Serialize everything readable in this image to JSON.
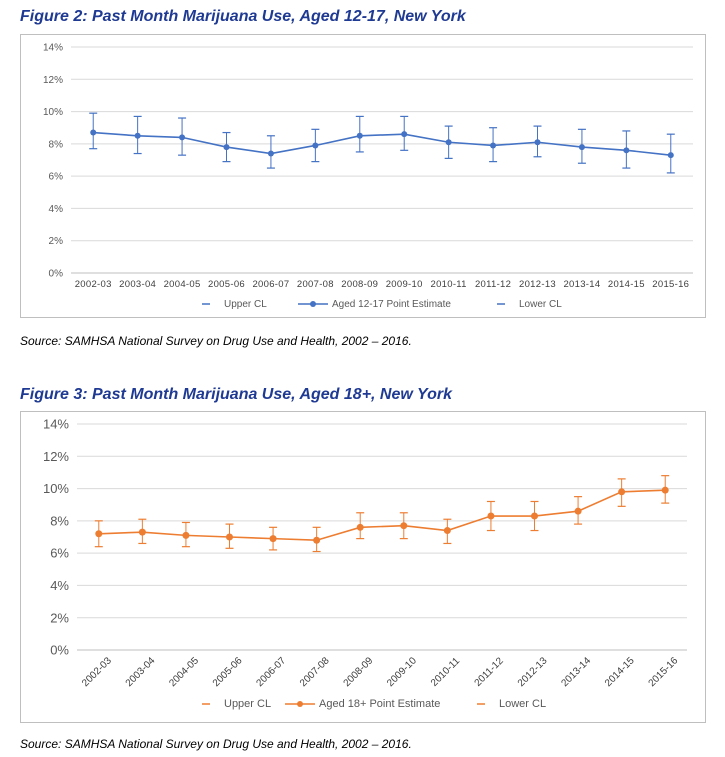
{
  "figures": [
    {
      "title": "Figure 2: Past Month Marijuana Use, Aged 12-17, New York",
      "source": "Source: SAMHSA National Survey on Drug Use and Health, 2002 – 2016."
    },
    {
      "title": "Figure 3: Past Month Marijuana Use, Aged 18+, New York",
      "source": "Source: SAMHSA National Survey on Drug Use and Health, 2002 – 2016."
    }
  ],
  "chart_data": [
    {
      "type": "line",
      "title": "",
      "color": "#4472c4",
      "categories": [
        "2002-03",
        "2003-04",
        "2004-05",
        "2005-06",
        "2006-07",
        "2007-08",
        "2008-09",
        "2009-10",
        "2010-11",
        "2011-12",
        "2012-13",
        "2013-14",
        "2014-15",
        "2015-16"
      ],
      "series": [
        {
          "name": "Upper CL",
          "values": [
            9.9,
            9.7,
            9.6,
            8.7,
            8.5,
            8.9,
            9.7,
            9.7,
            9.1,
            9.0,
            9.1,
            8.9,
            8.8,
            8.6
          ]
        },
        {
          "name": "Aged 12-17 Point Estimate",
          "values": [
            8.7,
            8.5,
            8.4,
            7.8,
            7.4,
            7.9,
            8.5,
            8.6,
            8.1,
            7.9,
            8.1,
            7.8,
            7.6,
            7.3
          ]
        },
        {
          "name": "Lower CL",
          "values": [
            7.7,
            7.4,
            7.3,
            6.9,
            6.5,
            6.9,
            7.5,
            7.6,
            7.1,
            6.9,
            7.2,
            6.8,
            6.5,
            6.2
          ]
        }
      ],
      "yticks": [
        "0%",
        "2%",
        "4%",
        "6%",
        "8%",
        "10%",
        "12%",
        "14%"
      ],
      "ylim": [
        0,
        14
      ],
      "legend_position": "bottom",
      "grid": true,
      "rotated_x_labels": false
    },
    {
      "type": "line",
      "title": "",
      "color": "#ed7d31",
      "categories": [
        "2002-03",
        "2003-04",
        "2004-05",
        "2005-06",
        "2006-07",
        "2007-08",
        "2008-09",
        "2009-10",
        "2010-11",
        "2011-12",
        "2012-13",
        "2013-14",
        "2014-15",
        "2015-16"
      ],
      "series": [
        {
          "name": "Upper CL",
          "values": [
            8.0,
            8.1,
            7.9,
            7.8,
            7.6,
            7.6,
            8.5,
            8.5,
            8.1,
            9.2,
            9.2,
            9.5,
            10.6,
            10.8
          ]
        },
        {
          "name": "Aged 18+ Point Estimate",
          "values": [
            7.2,
            7.3,
            7.1,
            7.0,
            6.9,
            6.8,
            7.6,
            7.7,
            7.4,
            8.3,
            8.3,
            8.6,
            9.8,
            9.9
          ]
        },
        {
          "name": "Lower CL",
          "values": [
            6.4,
            6.6,
            6.4,
            6.3,
            6.2,
            6.1,
            6.9,
            6.9,
            6.6,
            7.4,
            7.4,
            7.8,
            8.9,
            9.1
          ]
        }
      ],
      "yticks": [
        "0%",
        "2%",
        "4%",
        "6%",
        "8%",
        "10%",
        "12%",
        "14%"
      ],
      "ylim": [
        0,
        14
      ],
      "legend_position": "bottom",
      "grid": true,
      "rotated_x_labels": true
    }
  ]
}
